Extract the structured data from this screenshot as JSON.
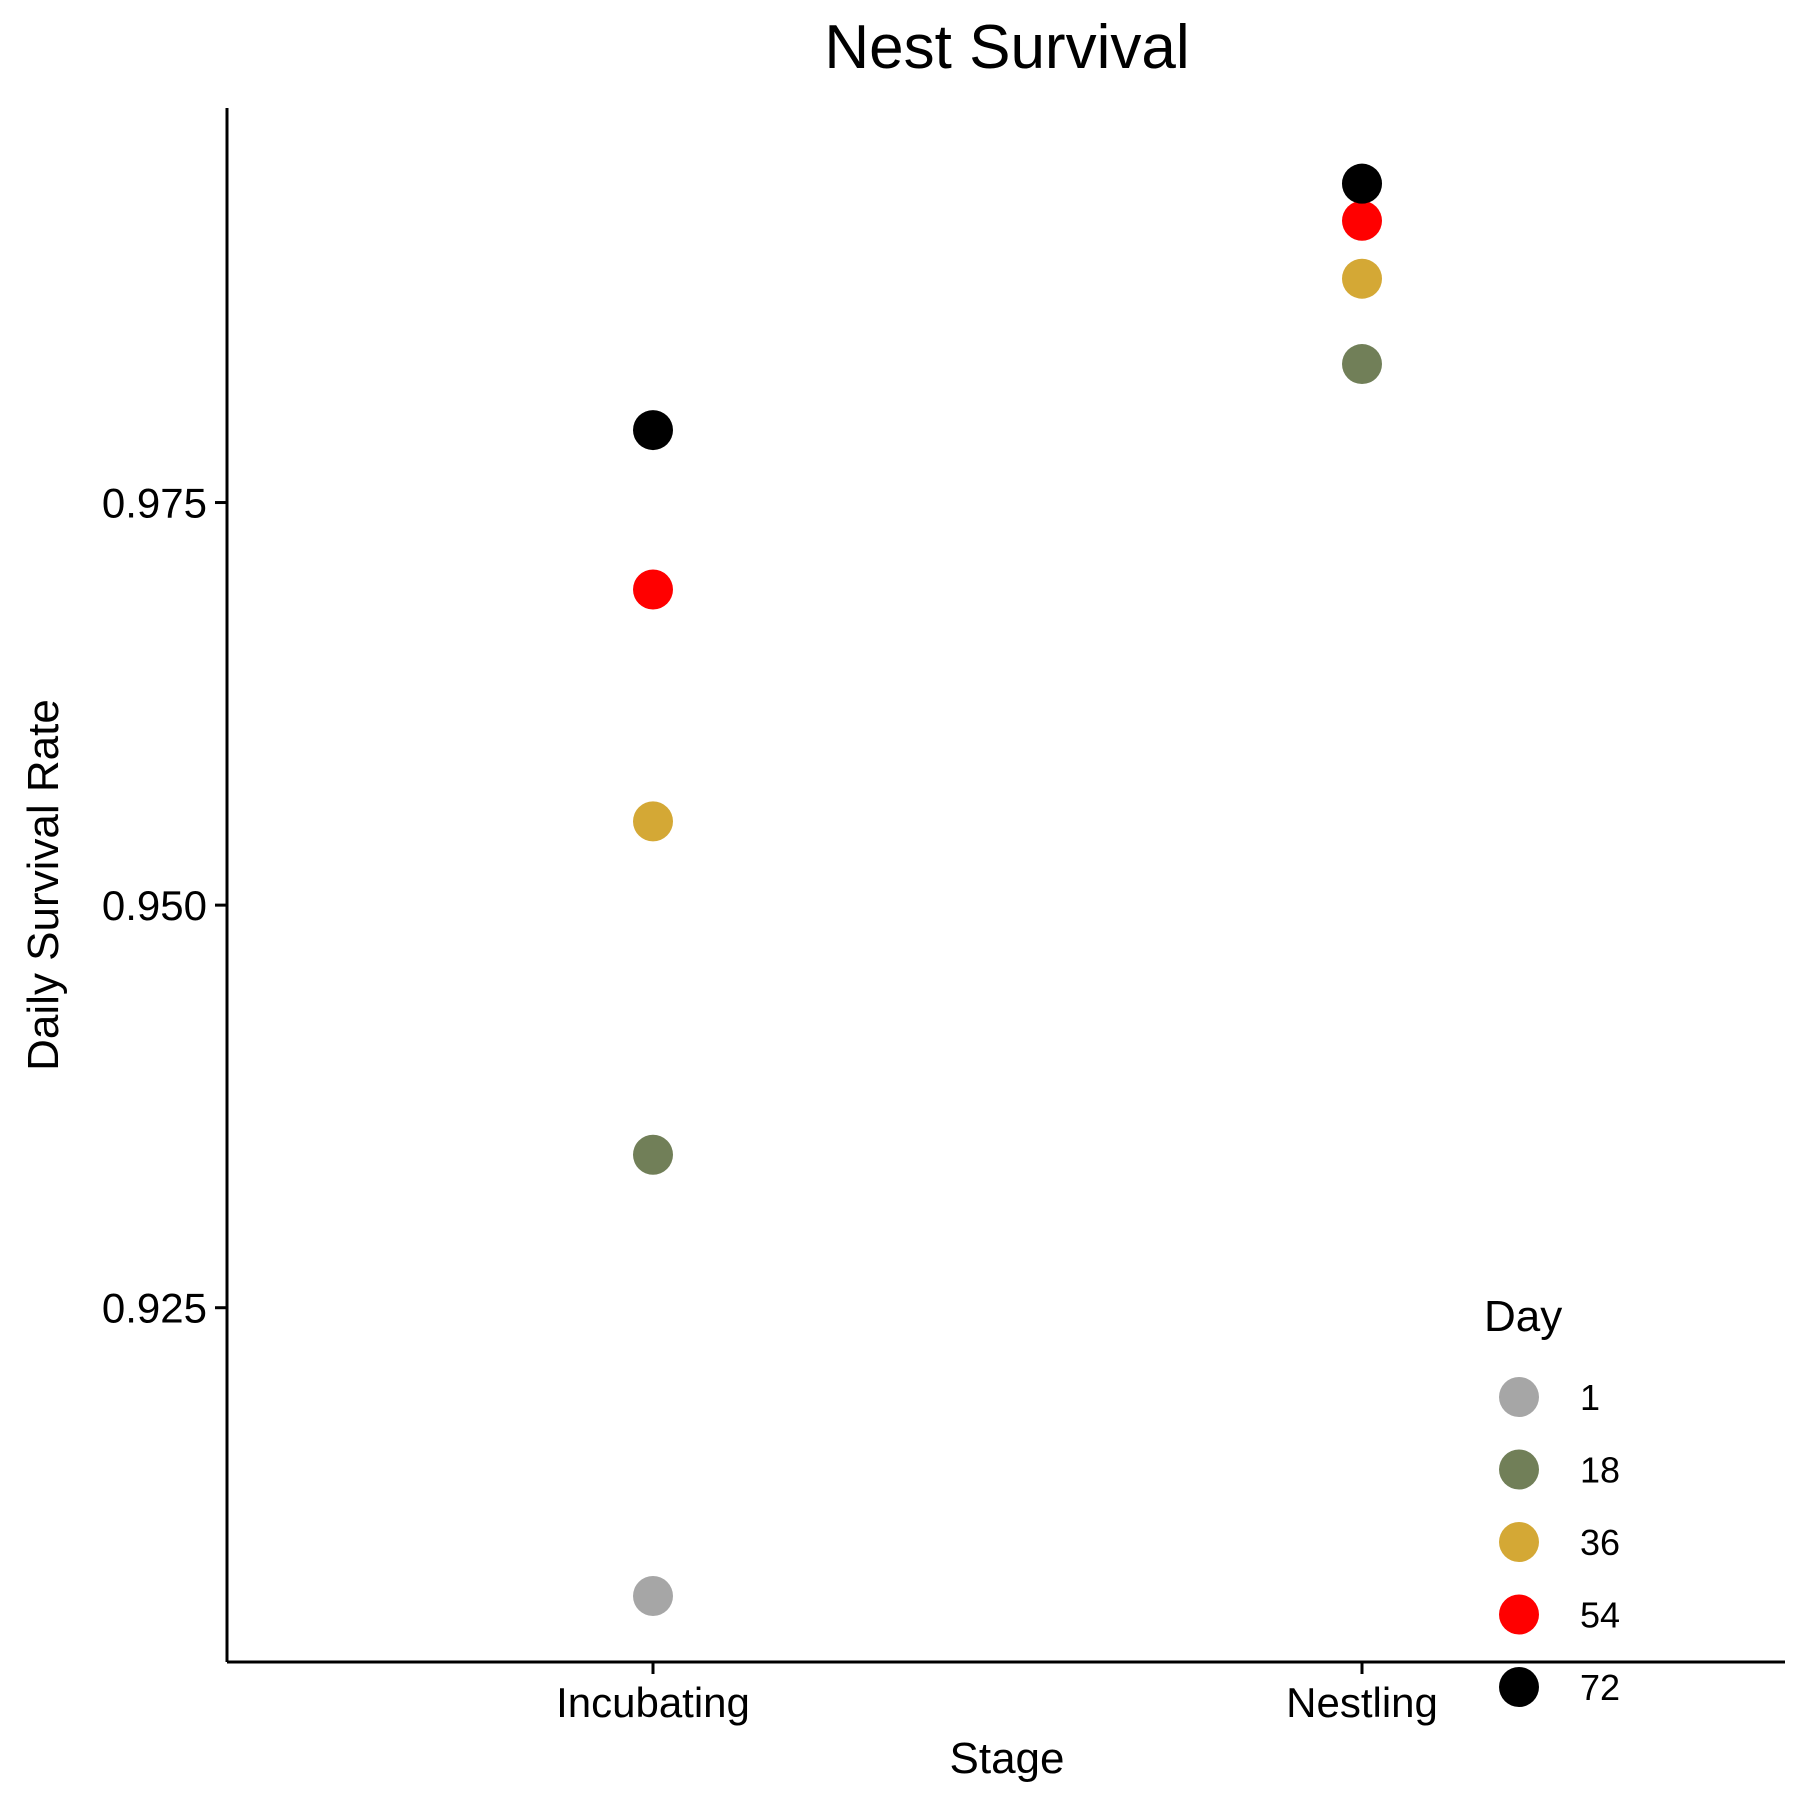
{
  "chart_data": {
    "type": "scatter",
    "title": "Nest Survival",
    "xlabel": "Stage",
    "ylabel": "Daily Survival Rate",
    "categories": [
      "Incubating",
      "Nestling"
    ],
    "ylim": [
      0.903,
      0.9995
    ],
    "yticks": [
      0.925,
      0.95,
      0.975
    ],
    "ytick_labels": [
      "0.925",
      "0.950",
      "0.975"
    ],
    "grid": false,
    "legend": {
      "title": "Day",
      "position": "bottom-right"
    },
    "series": [
      {
        "name": "1",
        "color": "#a6a6a6",
        "values": [
          0.9071,
          0.9948
        ]
      },
      {
        "name": "18",
        "color": "#717f58",
        "values": [
          0.9345,
          0.9836
        ]
      },
      {
        "name": "36",
        "color": "#d4a835",
        "values": [
          0.9552,
          0.9889
        ]
      },
      {
        "name": "54",
        "color": "#ff0000",
        "values": [
          0.9696,
          0.9925
        ]
      },
      {
        "name": "72",
        "color": "#000000",
        "values": [
          0.9795,
          0.9948
        ]
      }
    ]
  }
}
